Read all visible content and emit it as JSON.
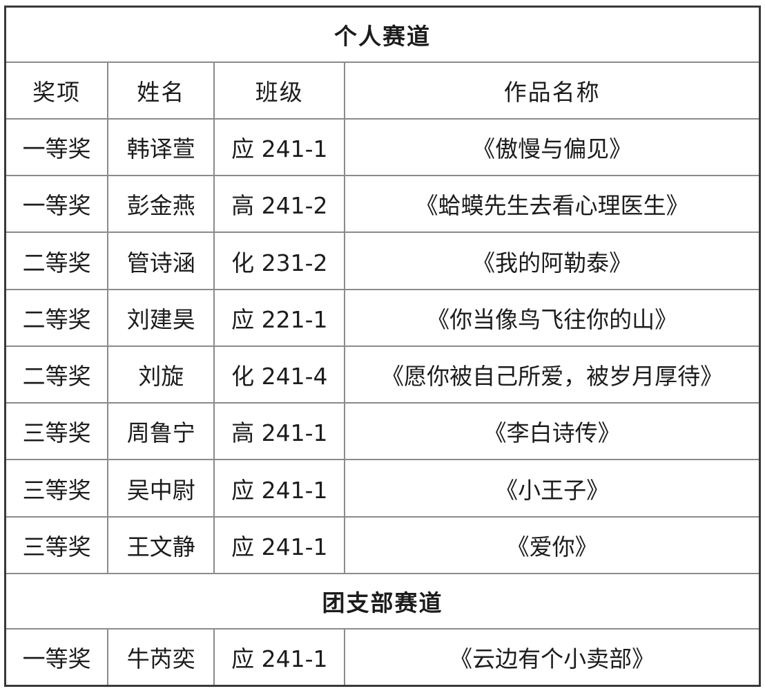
{
  "table": {
    "columns": {
      "award": "奖项",
      "name": "姓名",
      "class": "班级",
      "work": "作品名称"
    },
    "sections": [
      {
        "title": "个人赛道",
        "rows": [
          {
            "award": "一等奖",
            "name": "韩译萱",
            "class": "应 241-1",
            "work": "《傲慢与偏见》"
          },
          {
            "award": "一等奖",
            "name": "彭金燕",
            "class": "高 241-2",
            "work": "《蛤蟆先生去看心理医生》"
          },
          {
            "award": "二等奖",
            "name": "管诗涵",
            "class": "化 231-2",
            "work": "《我的阿勒泰》"
          },
          {
            "award": "二等奖",
            "name": "刘建昊",
            "class": "应 221-1",
            "work": "《你当像鸟飞往你的山》"
          },
          {
            "award": "二等奖",
            "name": "刘旋",
            "class": "化 241-4",
            "work": "《愿你被自己所爱，被岁月厚待》"
          },
          {
            "award": "三等奖",
            "name": "周鲁宁",
            "class": "高 241-1",
            "work": "《李白诗传》"
          },
          {
            "award": "三等奖",
            "name": "吴中尉",
            "class": "应 241-1",
            "work": "《小王子》"
          },
          {
            "award": "三等奖",
            "name": "王文静",
            "class": "应 241-1",
            "work": "《爱你》"
          }
        ]
      },
      {
        "title": "团支部赛道",
        "rows": [
          {
            "award": "一等奖",
            "name": "牛芮奕",
            "class": "应 241-1",
            "work": "《云边有个小卖部》"
          }
        ]
      }
    ],
    "colors": {
      "outer_border": "#383838",
      "inner_border": "#8a8a8a",
      "text": "#1c1c1c",
      "background": "#ffffff"
    }
  }
}
